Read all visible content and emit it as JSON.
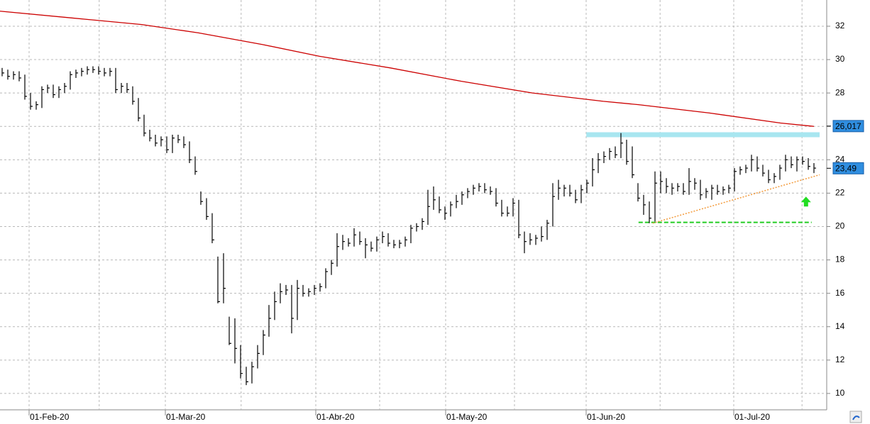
{
  "chart_data": {
    "type": "ohlc",
    "xlim": [
      -0.375,
      145.25
    ],
    "ylim": [
      9.02,
      33.57
    ],
    "xticks": [
      {
        "value": 4.75,
        "label": "01-Feb-20"
      },
      {
        "value": 28.75,
        "label": "01-Mar-20"
      },
      {
        "value": 55.25,
        "label": "01-Abr-20"
      },
      {
        "value": 78.125,
        "label": "01-May-20"
      },
      {
        "value": 102.875,
        "label": "01-Jun-20"
      },
      {
        "value": 128.875,
        "label": "01-Jul-20"
      }
    ],
    "x_minor_ticks": [
      17.1,
      42.1,
      66.5,
      90.25,
      115.9,
      140.9
    ],
    "yticks": [
      10,
      12,
      14,
      16,
      18,
      20,
      22,
      24,
      26,
      28,
      30,
      32
    ],
    "grid": true,
    "bar_color": "#000000",
    "high": [
      29.5,
      29.4,
      29.3,
      29.3,
      29.1,
      28.0,
      27.5,
      28.4,
      28.5,
      28.5,
      28.4,
      28.6,
      29.3,
      29.4,
      29.5,
      29.6,
      29.6,
      29.6,
      29.5,
      29.5,
      29.5,
      28.6,
      28.6,
      28.4,
      27.7,
      26.7,
      25.8,
      25.5,
      25.4,
      25.4,
      25.5,
      25.5,
      25.4,
      25.1,
      24.2,
      22.1,
      21.7,
      20.8,
      18.2,
      18.4,
      14.6,
      14.5,
      12.9,
      11.6,
      11.9,
      12.9,
      13.8,
      15.3,
      16.1,
      16.6,
      16.5,
      16.5,
      16.8,
      16.5,
      16.3,
      16.5,
      16.6,
      17.5,
      18.0,
      19.6,
      19.5,
      19.3,
      19.9,
      19.7,
      19.3,
      19.1,
      19.4,
      19.7,
      19.6,
      19.2,
      19.2,
      19.4,
      20.1,
      20.2,
      20.5,
      22.2,
      22.4,
      21.8,
      21.2,
      21.5,
      21.9,
      22.1,
      22.3,
      22.5,
      22.6,
      22.6,
      22.4,
      22.3,
      21.6,
      21.2,
      21.7,
      21.6,
      19.7,
      19.6,
      19.5,
      20.0,
      20.4,
      22.6,
      22.8,
      22.5,
      22.5,
      22.2,
      22.5,
      22.8,
      24.1,
      24.4,
      24.5,
      24.7,
      24.8,
      25.6,
      25.2,
      24.8,
      22.6,
      21.9,
      21.5,
      23.3,
      23.3,
      22.9,
      22.6,
      22.6,
      22.6,
      23.5,
      22.9,
      22.8,
      22.3,
      22.5,
      22.5,
      22.4,
      22.5,
      23.5,
      23.6,
      23.7,
      24.3,
      24.2,
      23.7,
      23.4,
      23.2,
      23.7,
      24.3,
      24.2,
      24.2,
      24.2,
      24.1,
      23.8
    ],
    "low": [
      29.0,
      28.8,
      28.8,
      28.7,
      27.6,
      27.0,
      27.0,
      27.1,
      28.0,
      27.7,
      27.7,
      28.0,
      28.2,
      28.9,
      29.0,
      29.1,
      29.2,
      29.1,
      29.0,
      29.0,
      28.0,
      28.0,
      28.0,
      27.3,
      26.3,
      25.4,
      25.1,
      24.8,
      24.8,
      24.4,
      24.4,
      25.0,
      24.7,
      23.8,
      23.1,
      21.3,
      20.4,
      19.0,
      15.4,
      15.4,
      12.9,
      11.8,
      10.9,
      10.5,
      10.6,
      11.5,
      12.3,
      13.4,
      14.4,
      15.4,
      15.9,
      13.6,
      14.4,
      15.8,
      15.8,
      15.9,
      16.1,
      16.3,
      17.1,
      17.6,
      18.6,
      18.8,
      18.8,
      18.9,
      18.1,
      18.5,
      18.5,
      19.0,
      18.8,
      18.7,
      18.7,
      18.8,
      19.0,
      19.7,
      19.8,
      20.1,
      21.0,
      20.8,
      20.4,
      20.6,
      21.1,
      21.3,
      21.7,
      21.9,
      22.1,
      22.0,
      21.9,
      21.2,
      20.6,
      20.6,
      20.6,
      19.3,
      18.4,
      18.9,
      18.9,
      19.1,
      19.2,
      20.0,
      21.6,
      21.8,
      21.8,
      21.4,
      21.4,
      22.0,
      22.4,
      23.2,
      23.8,
      24.0,
      24.1,
      24.1,
      23.7,
      22.9,
      21.5,
      20.7,
      20.2,
      20.3,
      22.0,
      22.0,
      21.9,
      22.1,
      21.9,
      21.9,
      22.2,
      21.6,
      21.7,
      21.6,
      21.9,
      21.9,
      22.0,
      22.1,
      23.1,
      23.2,
      23.3,
      23.3,
      23.0,
      22.6,
      22.6,
      22.8,
      23.3,
      23.5,
      23.3,
      23.7,
      23.4,
      23.2
    ],
    "close": [
      29.2,
      29.0,
      29.1,
      28.9,
      27.8,
      27.2,
      27.3,
      28.2,
      28.3,
      27.9,
      28.2,
      28.4,
      29.1,
      29.2,
      29.3,
      29.4,
      29.4,
      29.3,
      29.2,
      29.3,
      28.2,
      28.4,
      28.2,
      27.5,
      26.5,
      25.6,
      25.3,
      25.0,
      25.2,
      24.6,
      25.3,
      25.2,
      24.9,
      24.0,
      23.3,
      21.5,
      20.6,
      19.2,
      15.5,
      16.3,
      13.0,
      12.7,
      11.2,
      10.7,
      11.6,
      12.4,
      13.5,
      14.5,
      15.5,
      16.1,
      16.2,
      14.5,
      16.3,
      16.0,
      16.1,
      16.3,
      16.4,
      17.3,
      17.8,
      18.8,
      19.1,
      19.0,
      19.5,
      19.1,
      18.9,
      18.7,
      19.2,
      19.4,
      19.0,
      18.9,
      19.0,
      19.2,
      19.9,
      20.0,
      20.3,
      21.2,
      21.6,
      21.0,
      20.8,
      21.3,
      21.5,
      21.9,
      22.1,
      22.3,
      22.4,
      22.2,
      22.1,
      21.4,
      20.8,
      20.8,
      21.4,
      19.5,
      19.1,
      19.2,
      19.3,
      19.4,
      20.2,
      21.8,
      22.3,
      22.3,
      22.0,
      21.6,
      22.2,
      22.6,
      23.4,
      24.0,
      24.2,
      24.5,
      24.3,
      25.0,
      23.9,
      23.1,
      21.7,
      21.3,
      20.5,
      22.6,
      22.7,
      22.4,
      22.3,
      22.4,
      22.1,
      22.7,
      22.6,
      21.9,
      22.1,
      22.3,
      22.1,
      22.2,
      22.3,
      23.3,
      23.4,
      23.5,
      24.0,
      23.5,
      23.2,
      22.8,
      23.0,
      23.5,
      24.0,
      23.7,
      24.0,
      23.9,
      23.6,
      23.5
    ],
    "moving_average": {
      "color": "#cc0000",
      "x": [
        -0.375,
        12.1,
        24.6,
        34.6,
        45.9,
        55.9,
        68.4,
        80.9,
        93.4,
        105.9,
        112.1,
        124.6,
        137.1,
        143
      ],
      "values": [
        32.9,
        32.5,
        32.1,
        31.6,
        30.9,
        30.2,
        29.5,
        28.7,
        28.0,
        27.5,
        27.3,
        26.8,
        26.2,
        26.0
      ]
    },
    "resistance_band": {
      "color": "#a8e6f0",
      "x": [
        102.9,
        144.0
      ],
      "value": 25.5
    },
    "support_line": {
      "color": "#22cc22",
      "x": [
        112.1,
        142.6
      ],
      "value": 20.25
    },
    "trend_line": {
      "color": "#f39a3a",
      "x": [
        114.6,
        144.0
      ],
      "values": [
        20.2,
        23.1
      ]
    },
    "arrow": {
      "color": "#22dd22",
      "x": 141.6,
      "value": 21.2
    },
    "price_labels": [
      {
        "value": 26.017,
        "label": "26,017",
        "color": "#2f8ee0"
      },
      {
        "value": 23.49,
        "label": "23,49",
        "color": "#2f8ee0"
      }
    ]
  }
}
